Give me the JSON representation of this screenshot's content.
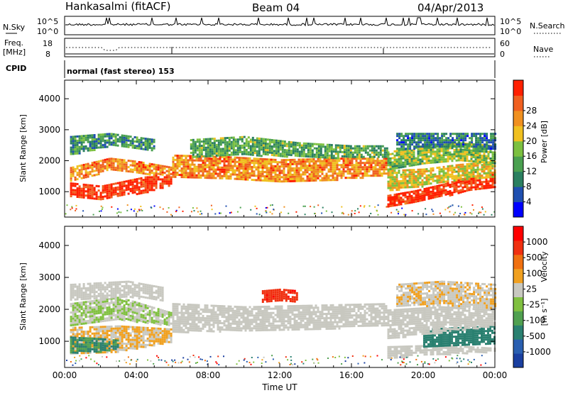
{
  "header": {
    "station": "Hankasalmi (fitACF)",
    "beam": "Beam 04",
    "date": "04/Apr/2013"
  },
  "summary_panels": {
    "nsky_label": "N.Sky",
    "nsearch_label": "N.Search",
    "nsky_ticks": [
      "10^5",
      "10^0"
    ],
    "freq_label_1": "Freq.",
    "freq_label_2": "[MHz]",
    "freq_ticks": [
      "18",
      "8"
    ],
    "nave_label": "Nave",
    "nave_ticks": [
      "60",
      "0"
    ],
    "cpid_label": "CPID",
    "cpid_text": "normal (fast stereo) 153"
  },
  "chart_data": [
    {
      "type": "heatmap",
      "title": "",
      "xlabel": "",
      "ylabel": "Slant Range [km]",
      "x_ticks": [
        "00:00",
        "04:00",
        "08:00",
        "12:00",
        "16:00",
        "20:00",
        "00:00"
      ],
      "xlim": [
        0,
        24
      ],
      "y_ticks": [
        1000,
        2000,
        3000,
        4000
      ],
      "ylim": [
        180,
        4600
      ],
      "colorbar": {
        "label": "Power [dB]",
        "ticks": [
          "4",
          "8",
          "12",
          "16",
          "20",
          "24",
          "28"
        ],
        "colors": [
          "#0000ff",
          "#1f4fb0",
          "#2a7f60",
          "#4aa050",
          "#7cc040",
          "#f0c020",
          "#f09020",
          "#f06020",
          "#ff2000"
        ]
      },
      "bands": [
        {
          "t": [
            0.3,
            2.0,
            4.5,
            6.0
          ],
          "r_low": [
            850,
            780,
            1000,
            1250
          ],
          "r_high": [
            1300,
            1200,
            1500,
            1500
          ],
          "level": 28
        },
        {
          "t": [
            0.3,
            2.5,
            4.0,
            6.0
          ],
          "r_low": [
            1350,
            1700,
            1600,
            1500
          ],
          "r_high": [
            1800,
            2100,
            2000,
            1800
          ],
          "level": 22
        },
        {
          "t": [
            0.3,
            2.5,
            5.0
          ],
          "r_low": [
            2200,
            2500,
            2300
          ],
          "r_high": [
            2800,
            2900,
            2700
          ],
          "level": 10
        },
        {
          "t": [
            6.0,
            9.0,
            12.0,
            15.0,
            18.0
          ],
          "r_low": [
            1500,
            1400,
            1350,
            1400,
            1550
          ],
          "r_high": [
            2200,
            2150,
            2050,
            2100,
            2100
          ],
          "level": 22
        },
        {
          "t": [
            7.0,
            10.0,
            13.0,
            16.0,
            18.0
          ],
          "r_low": [
            2100,
            2200,
            2150,
            2100,
            2100
          ],
          "r_high": [
            2700,
            2800,
            2600,
            2500,
            2500
          ],
          "level": 12
        },
        {
          "t": [
            18.0,
            19.5,
            21.0,
            22.5,
            24.0
          ],
          "r_low": [
            550,
            650,
            850,
            1050,
            1150
          ],
          "r_high": [
            900,
            1050,
            1250,
            1500,
            1600
          ],
          "level": 28
        },
        {
          "t": [
            18.0,
            20.0,
            22.0,
            24.0
          ],
          "r_low": [
            1050,
            1200,
            1400,
            1500
          ],
          "r_high": [
            1700,
            1750,
            1900,
            2000
          ],
          "level": 18
        },
        {
          "t": [
            18.0,
            20.0,
            22.0,
            24.0
          ],
          "r_low": [
            1700,
            1900,
            2000,
            1900
          ],
          "r_high": [
            2300,
            2500,
            2600,
            2500
          ],
          "level": 14
        },
        {
          "t": [
            18.5,
            21.0,
            24.0
          ],
          "r_low": [
            2400,
            2450,
            2400
          ],
          "r_high": [
            2900,
            2900,
            2900
          ],
          "level": 8
        }
      ]
    },
    {
      "type": "heatmap",
      "title": "",
      "xlabel": "Time UT",
      "ylabel": "Slant Range [km]",
      "x_ticks": [
        "00:00",
        "04:00",
        "08:00",
        "12:00",
        "16:00",
        "20:00",
        "00:00"
      ],
      "xlim": [
        0,
        24
      ],
      "y_ticks": [
        1000,
        2000,
        3000,
        4000
      ],
      "ylim": [
        180,
        4600
      ],
      "colorbar": {
        "label": "Velocity",
        "unit": "[m s⁻¹]",
        "ticks": [
          "1000",
          "500",
          "100",
          "25",
          "-25",
          "-100",
          "-500",
          "-1000"
        ],
        "colors": [
          "#1a3fa0",
          "#2a5fb0",
          "#2a8070",
          "#50a050",
          "#80c040",
          "#c8c8c0",
          "#f0a020",
          "#f07010",
          "#f03010",
          "#ff0000"
        ]
      },
      "bands": [
        {
          "t": [
            0.3,
            3.0,
            6.0
          ],
          "r_low": [
            600,
            700,
            1000
          ],
          "r_high": [
            1450,
            1500,
            1400
          ],
          "level": -10
        },
        {
          "t": [
            0.3,
            2.0,
            3.0
          ],
          "r_low": [
            650,
            700,
            800
          ],
          "r_high": [
            1150,
            1100,
            1050
          ],
          "level": 110
        },
        {
          "t": [
            0.3,
            3.0,
            6.0
          ],
          "r_low": [
            1500,
            1700,
            1500
          ],
          "r_high": [
            2200,
            2400,
            1900
          ],
          "level": 10
        },
        {
          "t": [
            0.3,
            3.5,
            5.5
          ],
          "r_low": [
            2300,
            2400,
            2300
          ],
          "r_high": [
            2800,
            2900,
            2700
          ],
          "level": -5
        },
        {
          "t": [
            6.0,
            10.0,
            14.0,
            18.0
          ],
          "r_low": [
            1300,
            1350,
            1400,
            1500
          ],
          "r_high": [
            2200,
            2100,
            2150,
            2200
          ],
          "level": 0
        },
        {
          "t": [
            11.0,
            12.0,
            13.0
          ],
          "r_low": [
            2250,
            2250,
            2250
          ],
          "r_high": [
            2600,
            2650,
            2600
          ],
          "level": -400
        },
        {
          "t": [
            18.0,
            21.0,
            24.0
          ],
          "r_low": [
            500,
            600,
            700
          ],
          "r_high": [
            850,
            900,
            800
          ],
          "level": 0
        },
        {
          "t": [
            20.0,
            22.0,
            24.0
          ],
          "r_low": [
            850,
            900,
            950
          ],
          "r_high": [
            1400,
            1450,
            1500
          ],
          "level": 150
        },
        {
          "t": [
            18.0,
            21.0,
            24.0
          ],
          "r_low": [
            1100,
            1300,
            1500
          ],
          "r_high": [
            2000,
            2100,
            2000
          ],
          "level": 5
        },
        {
          "t": [
            18.5,
            21.0,
            24.0
          ],
          "r_low": [
            2100,
            2150,
            2000
          ],
          "r_high": [
            2800,
            2900,
            2800
          ],
          "level": -8
        }
      ]
    }
  ]
}
